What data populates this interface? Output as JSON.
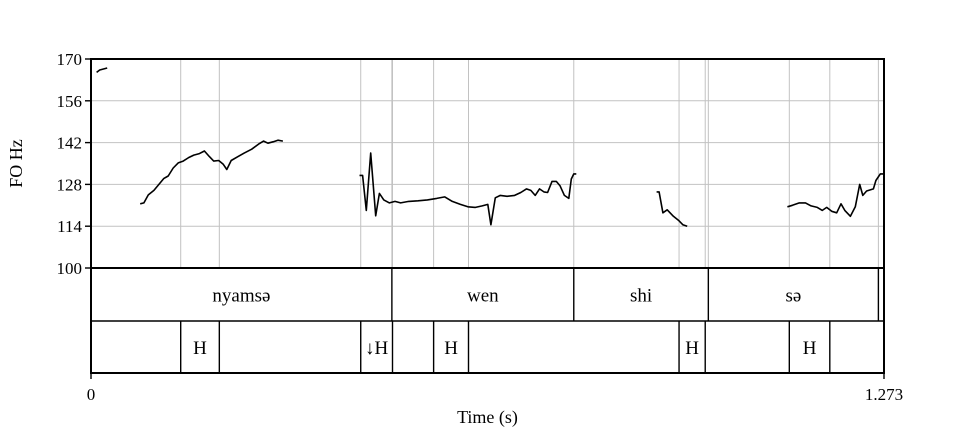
{
  "chart_data": {
    "type": "line",
    "ylabel": "FO Hz",
    "xlabel": "Time (s)",
    "xlim": [
      0,
      1.273
    ],
    "ylim": [
      100,
      170
    ],
    "x_tick_labels": [
      "0",
      "1.273"
    ],
    "y_ticks": [
      100,
      114,
      128,
      142,
      156,
      170
    ],
    "grid": true,
    "series": [
      {
        "points": [
          [
            0.009,
            165.5
          ],
          [
            0.014,
            166.3
          ],
          [
            0.026,
            167.0
          ]
        ]
      },
      {
        "points": [
          [
            0.079,
            121.5
          ],
          [
            0.085,
            121.8
          ],
          [
            0.092,
            124.5
          ],
          [
            0.101,
            126.0
          ],
          [
            0.109,
            128.0
          ],
          [
            0.117,
            130.0
          ],
          [
            0.124,
            130.8
          ],
          [
            0.132,
            133.5
          ],
          [
            0.14,
            135.2
          ],
          [
            0.148,
            135.8
          ],
          [
            0.157,
            137.0
          ],
          [
            0.165,
            137.8
          ],
          [
            0.174,
            138.3
          ],
          [
            0.182,
            139.2
          ],
          [
            0.19,
            137.3
          ],
          [
            0.197,
            135.8
          ],
          [
            0.205,
            136.0
          ],
          [
            0.212,
            134.8
          ],
          [
            0.218,
            133.0
          ],
          [
            0.225,
            136.0
          ],
          [
            0.236,
            137.3
          ],
          [
            0.246,
            138.5
          ],
          [
            0.258,
            139.8
          ],
          [
            0.269,
            141.5
          ],
          [
            0.277,
            142.5
          ],
          [
            0.284,
            141.8
          ],
          [
            0.293,
            142.3
          ],
          [
            0.3,
            142.8
          ],
          [
            0.308,
            142.5
          ]
        ]
      },
      {
        "points": [
          [
            0.431,
            131.0
          ],
          [
            0.436,
            131.0
          ],
          [
            0.442,
            119.3
          ],
          [
            0.449,
            138.5
          ],
          [
            0.457,
            117.5
          ],
          [
            0.463,
            125.0
          ],
          [
            0.47,
            122.8
          ],
          [
            0.479,
            121.8
          ],
          [
            0.488,
            122.3
          ],
          [
            0.497,
            121.8
          ],
          [
            0.51,
            122.3
          ],
          [
            0.525,
            122.5
          ],
          [
            0.54,
            122.8
          ],
          [
            0.555,
            123.3
          ],
          [
            0.568,
            123.8
          ],
          [
            0.58,
            122.3
          ],
          [
            0.593,
            121.3
          ],
          [
            0.605,
            120.5
          ],
          [
            0.617,
            120.3
          ],
          [
            0.628,
            120.8
          ],
          [
            0.637,
            121.3
          ],
          [
            0.642,
            114.5
          ],
          [
            0.649,
            123.5
          ],
          [
            0.657,
            124.3
          ],
          [
            0.668,
            124.0
          ],
          [
            0.68,
            124.3
          ],
          [
            0.69,
            125.3
          ],
          [
            0.699,
            126.5
          ],
          [
            0.706,
            126.0
          ],
          [
            0.713,
            124.3
          ],
          [
            0.72,
            126.5
          ],
          [
            0.727,
            125.5
          ],
          [
            0.733,
            125.3
          ],
          [
            0.74,
            129.0
          ],
          [
            0.747,
            129.0
          ],
          [
            0.753,
            127.5
          ],
          [
            0.76,
            124.3
          ],
          [
            0.767,
            123.3
          ],
          [
            0.771,
            129.8
          ],
          [
            0.775,
            131.5
          ],
          [
            0.779,
            131.5
          ]
        ]
      },
      {
        "points": [
          [
            0.908,
            125.5
          ],
          [
            0.912,
            125.5
          ],
          [
            0.918,
            118.5
          ],
          [
            0.925,
            119.5
          ],
          [
            0.935,
            117.3
          ],
          [
            0.943,
            116.0
          ],
          [
            0.95,
            114.5
          ],
          [
            0.957,
            114.0
          ]
        ]
      },
      {
        "points": [
          [
            1.118,
            120.5
          ],
          [
            1.126,
            121.0
          ],
          [
            1.137,
            121.8
          ],
          [
            1.147,
            121.8
          ],
          [
            1.156,
            120.8
          ],
          [
            1.166,
            120.3
          ],
          [
            1.174,
            119.3
          ],
          [
            1.181,
            120.3
          ],
          [
            1.189,
            119.0
          ],
          [
            1.197,
            118.5
          ],
          [
            1.204,
            121.5
          ],
          [
            1.21,
            119.3
          ],
          [
            1.219,
            117.3
          ],
          [
            1.227,
            120.5
          ],
          [
            1.234,
            128.0
          ],
          [
            1.239,
            124.3
          ],
          [
            1.245,
            125.8
          ],
          [
            1.256,
            126.5
          ],
          [
            1.26,
            129.3
          ],
          [
            1.267,
            131.5
          ],
          [
            1.272,
            131.5
          ]
        ]
      }
    ]
  },
  "words_tier": [
    {
      "label": "nyamsə",
      "start": 0,
      "end": 0.483
    },
    {
      "label": "wen",
      "start": 0.483,
      "end": 0.775
    },
    {
      "label": "shi",
      "start": 0.775,
      "end": 0.991
    },
    {
      "label": "sə",
      "start": 0.991,
      "end": 1.264
    },
    {
      "label": "",
      "start": 1.264,
      "end": 1.273
    }
  ],
  "tones_tier": [
    {
      "label": "H",
      "start": 0.144,
      "end": 0.206
    },
    {
      "label": "↓H",
      "start": 0.433,
      "end": 0.484
    },
    {
      "label": "H",
      "start": 0.55,
      "end": 0.606
    },
    {
      "label": "H",
      "start": 0.944,
      "end": 0.986
    },
    {
      "label": "H",
      "start": 1.121,
      "end": 1.186
    }
  ]
}
